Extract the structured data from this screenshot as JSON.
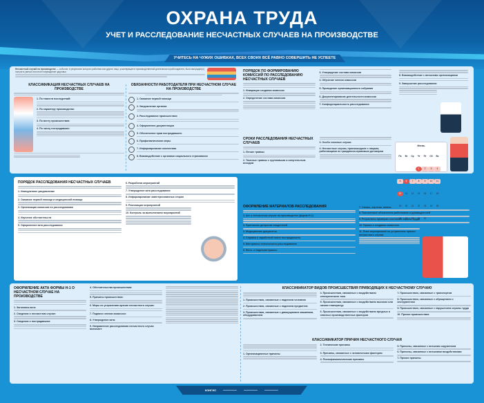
{
  "header": {
    "title": "ОХРАНА ТРУДА",
    "subtitle": "УЧЕТ И РАССЛЕДОВАНИЕ НЕСЧАСТНЫХ СЛУЧАЕВ НА ПРОИЗВОДСТВЕ",
    "slogan": "УЧИТЕСЬ НА ЧУЖИХ ОШИБКАХ, ВСЕХ СВОИХ ВСЁ РАВНО СОВЕРШИТЬ НЕ УСПЕЕТЕ"
  },
  "intro": {
    "term": "Несчастный случай на производстве",
    "text": "— событие, в результате которого работник или другое лицо, участвующее в производственной деятельности работодателя, было вынужден(о) получить увечье или иное повреждение здоровья"
  },
  "classification": {
    "title": "КЛАССИФИКАЦИЯ НЕСЧАСТНЫХ СЛУЧАЕВ НА ПРОИЗВОДСТВЕ",
    "items": [
      "1. По тяжести последствий:",
      "2. По характеру производства:",
      "3. По месту происшествия:",
      "4. По числу пострадавших:"
    ]
  },
  "obligations": {
    "title": "ОБЯЗАННОСТИ РАБОТОДАТЕЛЯ ПРИ НЕСЧАСТНОМ СЛУЧАЕ НА ПРОИЗВОДСТВЕ",
    "items": [
      "1. Оказание первой помощи",
      "2. Уведомление органов",
      "3. Расследование происшествия",
      "4. Оформление документации",
      "5. Обеспечение прав пострадавшего",
      "6. Профилактические меры",
      "7. Информирование коллектива",
      "8. Взаимодействие с органами социального страхования"
    ]
  },
  "commission": {
    "title": "ПОРЯДОК ПО ФОРМИРОВАНИЮ КОМИССИЙ ПО РАССЛЕДОВАНИЮ НЕСЧАСТНЫХ СЛУЧАЕВ",
    "items": [
      "1. Инициация создания комиссии",
      "2. Определение состава комиссии",
      "3. Утверждение состава комиссии",
      "4. Обучение членов комиссии",
      "5. Проведение организационного собрания",
      "6. Документирование деятельности комиссии",
      "7. Конфиденциальность расследования",
      "8. Взаимодействие с внешними организациями",
      "9. Завершение расследования"
    ]
  },
  "deadlines": {
    "title": "СРОКИ РАССЛЕДОВАНИЯ НЕСЧАСТНЫХ СЛУЧАЕВ",
    "items": [
      "1. Легкие травмы",
      "2. Тяжелые травмы с групповыми и смертельным исходом",
      "3. Особо сложные случаи",
      "4. Несчастные случаи, произошедшие с лицами, работающими по гражданско-правовым договорам"
    ]
  },
  "calendar": {
    "month": "Июнь",
    "weekdays": [
      "Пн",
      "Вт",
      "Ср",
      "Чт",
      "Пт",
      "Сб",
      "Вс"
    ],
    "days": [
      "",
      "",
      "",
      "1",
      "2",
      "3",
      "4",
      "5",
      "6",
      "7",
      "8",
      "9",
      "10",
      "11",
      "12",
      "13",
      "14",
      "15",
      "16",
      "17",
      "18",
      "19",
      "20",
      "21",
      "22",
      "23",
      "24",
      "25",
      "26",
      "27",
      "28",
      "29",
      "30"
    ],
    "highlight": [
      "1",
      "6",
      "12"
    ]
  },
  "procedure": {
    "title": "ПОРЯДОК РАССЛЕДОВАНИЯ НЕСЧАСТНЫХ СЛУЧАЕВ",
    "items": [
      "1. Немедленное уведомление",
      "2. Оказание первой помощи и медицинской помощи",
      "3. Организация комиссии по расследованию",
      "4. Изучение обстоятельств",
      "5. Оформление акта расследования",
      "6. Разработка мероприятий",
      "7. Утверждение акта расследования",
      "8. Информирование заинтересованных сторон",
      "9. Реализация мероприятий",
      "10. Контроль за выполнением мероприятий"
    ]
  },
  "materials": {
    "title": "ОФОРМЛЕНИЕ МАТЕРИАЛОВ РАССЛЕДОВАНИЯ",
    "items": [
      "1. Акт о несчастном случае на производстве (форма Н-1)",
      "2. Протоколы допросов свидетелей",
      "3. Медицинские документы",
      "4. Справка о заработной плате пострадавшего",
      "5. Материалы технического расследования",
      "6. Фото- и видеоматериалы",
      "7. Схемы, чертежи, планы",
      "8. Письменные объяснения работников и руководителей",
      "9. Результаты проверки состояния охраны труда",
      "10. Приказ о создании комиссии",
      "11. План мероприятий по устранению причин несчастного случая"
    ]
  },
  "act": {
    "title": "ОФОРМЛЕНИЕ АКТА ФОРМЫ Н-1 О НЕСЧАСТНОМ СЛУЧАЕ НА ПРОИЗВОДСТВЕ",
    "items": [
      "1. Заголовок акта:",
      "2. Сведения о несчастном случае:",
      "3. Сведения о пострадавшем:",
      "4. Обстоятельства происшествия:",
      "5. Причины происшествия:",
      "6. Меры по устранению причин несчастного случая:",
      "7. Подписи членов комиссии:",
      "8. Утверждение акта:",
      "9. Направление расследования несчастного случая включает:"
    ]
  },
  "types": {
    "title": "КЛАССИФИКАТОР ВИДОВ ПРОИСШЕСТВИЯ ПРИВОДЯЩИХ К НЕСЧАСТНОМУ СЛУЧАЮ",
    "items": [
      "1. Происшествия, связанные с падением человека",
      "2. Происшествия, связанные с падением предметов",
      "3. Происшествия, связанные с движущимися машинами, оборудованием",
      "4. Происшествия, связанные с воздействием электрического тока",
      "5. Происшествия, связанные с воздействием высоких или низких температур",
      "6. Происшествия, связанные с воздействием вредных и опасных производственных факторов",
      "7. Происшествия, связанные с транспортом",
      "8. Происшествия, связанные с обращением с инструментом",
      "9. Происшествия, связанные с нарушением охраны труда",
      "10. Прочие происшествия"
    ]
  },
  "causes": {
    "title": "КЛАССИФИКАТОР ПРИЧИН НЕСЧАСТНОГО СЛУЧАЯ",
    "items": [
      "1. Организационные причины",
      "2. Технические причины",
      "3. Причины, связанные с человеческим фактором",
      "4. Психофизиологические причины",
      "5. Причины, связанные с внешним окружением",
      "6. Причины, связанные с внешними воздействиями",
      "7. Прочие причины"
    ]
  },
  "footer": {
    "brand": "КОНГИС"
  },
  "colors": {
    "header": "#0d62a6",
    "accent": "#e9524a",
    "background": "#1a93d6"
  }
}
